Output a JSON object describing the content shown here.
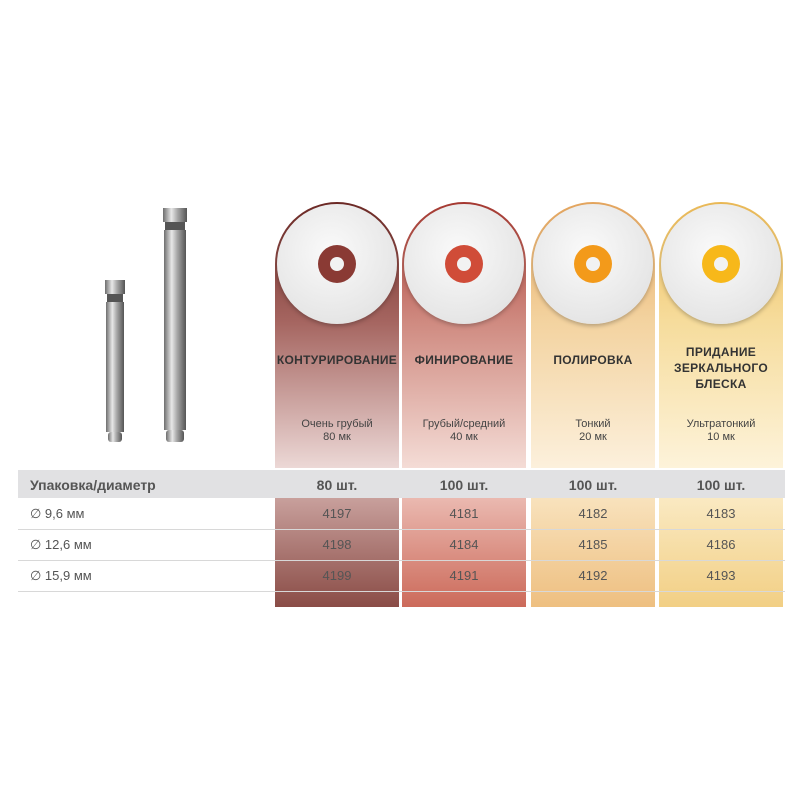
{
  "colors": {
    "contouring": "#8a3a34",
    "finishing": "#d04c38",
    "polishing": "#f39a1a",
    "mirror": "#f7b81a"
  },
  "products": [
    {
      "title": "КОНТУРИРОВАНИЕ",
      "grit": "Очень грубый",
      "micron": "80 мк",
      "pack": "80 шт.",
      "codes": [
        "4197",
        "4198",
        "4199"
      ]
    },
    {
      "title": "ФИНИРОВАНИЕ",
      "grit": "Грубый/средний",
      "micron": "40 мк",
      "pack": "100 шт.",
      "codes": [
        "4181",
        "4184",
        "4191"
      ]
    },
    {
      "title": "ПОЛИРОВКА",
      "grit": "Тонкий",
      "micron": "20 мк",
      "pack": "100 шт.",
      "codes": [
        "4182",
        "4185",
        "4192"
      ]
    },
    {
      "title": "ПРИДАНИЕ ЗЕРКАЛЬНОГО БЛЕСКА",
      "grit": "Ультратонкий",
      "micron": "10 мк",
      "pack": "100 шт.",
      "codes": [
        "4183",
        "4186",
        "4193"
      ]
    }
  ],
  "table": {
    "header_label": "Упаковка/диаметр",
    "diameters": [
      "∅ 9,6 мм",
      "∅ 12,6 мм",
      "∅ 15,9 мм"
    ]
  }
}
